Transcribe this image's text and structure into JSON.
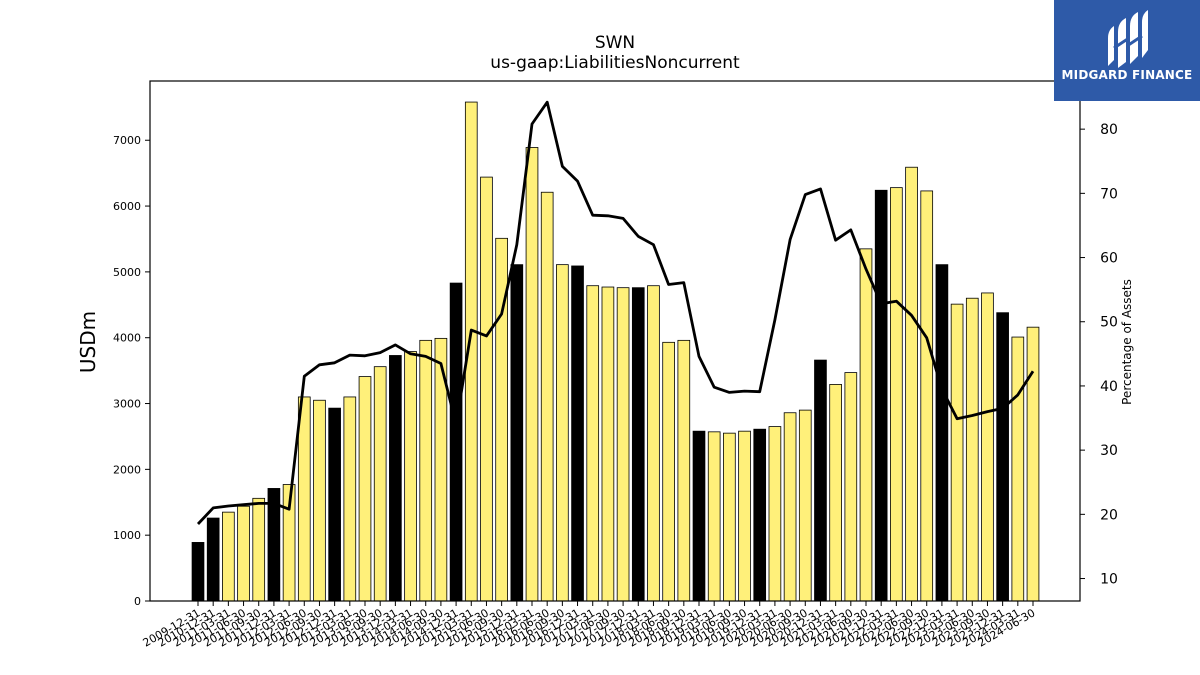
{
  "brand": {
    "name": "MIDGARD FINANCE",
    "background": "#2e5aa8",
    "logo_icon": "midgard-m-logo"
  },
  "chart_data": {
    "type": "bar",
    "title": "SWN",
    "subtitle": "us-gaap:LiabilitiesNoncurrent",
    "ylabel": "USDm",
    "y2label": "Percentage of Assets",
    "ylim": [
      0,
      7900
    ],
    "y2lim": [
      6.5,
      87.5
    ],
    "yticks": [
      0,
      1000,
      2000,
      3000,
      4000,
      5000,
      6000,
      7000
    ],
    "y2ticks": [
      10,
      20,
      30,
      40,
      50,
      60,
      70,
      80
    ],
    "colors": {
      "year_end": "#000000",
      "quarter": "#fff07a",
      "line": "#000000"
    },
    "categories": [
      "2009-12-31",
      "2010-12-31",
      "2011-03-31",
      "2011-06-30",
      "2011-09-30",
      "2011-12-31",
      "2012-03-31",
      "2012-06-30",
      "2012-09-30",
      "2012-12-31",
      "2013-03-31",
      "2013-06-30",
      "2013-09-30",
      "2013-12-31",
      "2014-03-31",
      "2014-06-30",
      "2014-09-30",
      "2014-12-31",
      "2015-03-31",
      "2015-06-30",
      "2015-09-30",
      "2015-12-31",
      "2016-03-31",
      "2016-06-30",
      "2016-09-30",
      "2016-12-31",
      "2017-03-31",
      "2017-06-30",
      "2017-09-30",
      "2017-12-31",
      "2018-03-31",
      "2018-06-30",
      "2018-09-30",
      "2018-12-31",
      "2019-03-31",
      "2019-06-30",
      "2019-09-30",
      "2019-12-31",
      "2020-03-31",
      "2020-06-30",
      "2020-09-30",
      "2020-12-31",
      "2021-03-31",
      "2021-06-30",
      "2021-09-30",
      "2021-12-31",
      "2022-03-31",
      "2022-06-30",
      "2022-09-30",
      "2022-12-31",
      "2023-03-31",
      "2023-06-30",
      "2023-09-30",
      "2023-12-31",
      "2024-03-31",
      "2024-06-30"
    ],
    "values": [
      890,
      1260,
      1350,
      1440,
      1560,
      1710,
      1770,
      3100,
      3050,
      2930,
      3100,
      3410,
      3560,
      3730,
      3790,
      3960,
      3990,
      4830,
      7580,
      6440,
      5510,
      5110,
      6890,
      6210,
      5110,
      5090,
      4790,
      4770,
      4760,
      4760,
      4790,
      3930,
      3960,
      2580,
      2570,
      2550,
      2580,
      2610,
      2650,
      2860,
      2900,
      3660,
      3290,
      3470,
      5350,
      6240,
      6280,
      6590,
      6230,
      5110,
      4510,
      4600,
      4680,
      4380,
      4010,
      4160
    ],
    "year_end": [
      true,
      true,
      false,
      false,
      false,
      true,
      false,
      false,
      false,
      true,
      false,
      false,
      false,
      true,
      false,
      false,
      false,
      true,
      false,
      false,
      false,
      true,
      false,
      false,
      false,
      true,
      false,
      false,
      false,
      true,
      false,
      false,
      false,
      true,
      false,
      false,
      false,
      true,
      false,
      false,
      false,
      true,
      false,
      false,
      false,
      true,
      false,
      false,
      false,
      true,
      false,
      false,
      false,
      true,
      false,
      false
    ],
    "percent_of_assets": [
      18.5,
      21.0,
      21.3,
      21.5,
      21.7,
      21.7,
      20.8,
      41.5,
      43.3,
      43.6,
      44.8,
      44.7,
      45.2,
      46.4,
      45.0,
      44.6,
      43.5,
      34.0,
      48.7,
      47.8,
      51.2,
      62.0,
      80.8,
      84.2,
      74.2,
      71.9,
      66.6,
      66.5,
      66.1,
      63.3,
      62.0,
      55.8,
      56.1,
      44.6,
      39.8,
      39.0,
      39.2,
      39.1,
      50.3,
      62.8,
      69.8,
      70.7,
      62.7,
      64.3,
      58.2,
      52.8,
      53.2,
      51.0,
      47.5,
      39.5,
      34.9,
      35.4,
      36.0,
      36.5,
      38.6,
      42.3
    ]
  }
}
